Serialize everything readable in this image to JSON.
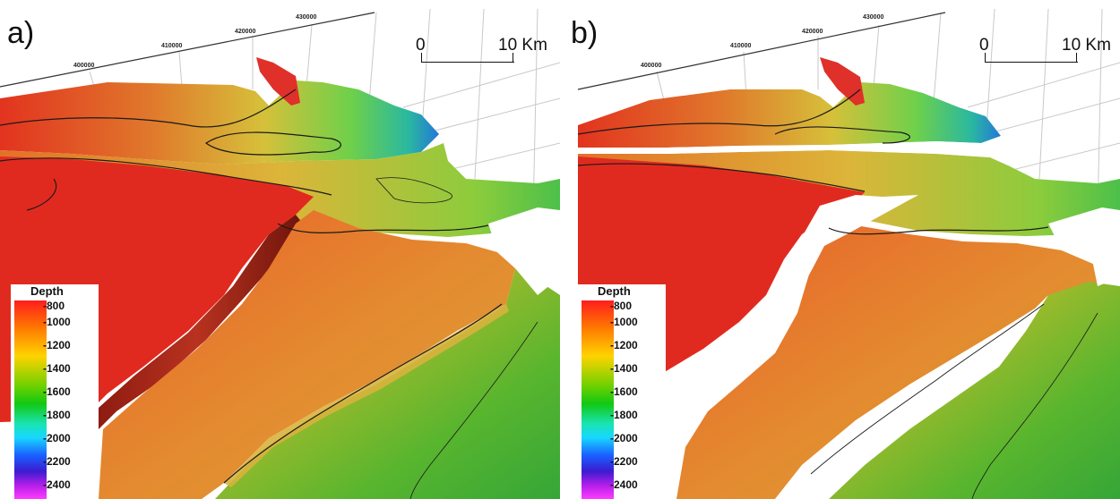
{
  "panels": [
    {
      "id": "a",
      "label": "a)",
      "coords": [
        "400000",
        "410000",
        "420000",
        "430000"
      ],
      "scale": {
        "start": "0",
        "end": "10 Km"
      },
      "legend": {
        "title": "Depth",
        "ticks": [
          "-800",
          "-1000",
          "-1200",
          "-1400",
          "-1600",
          "-1800",
          "-2000",
          "-2200",
          "-2400"
        ]
      }
    },
    {
      "id": "b",
      "label": "b)",
      "coords": [
        "400000",
        "410000",
        "420000",
        "430000"
      ],
      "scale": {
        "start": "0",
        "end": "10 Km"
      },
      "legend": {
        "title": "Depth",
        "ticks": [
          "-800",
          "-1000",
          "-1200",
          "-1400",
          "-1600",
          "-1800",
          "-2000",
          "-2200",
          "-2400"
        ]
      }
    }
  ]
}
